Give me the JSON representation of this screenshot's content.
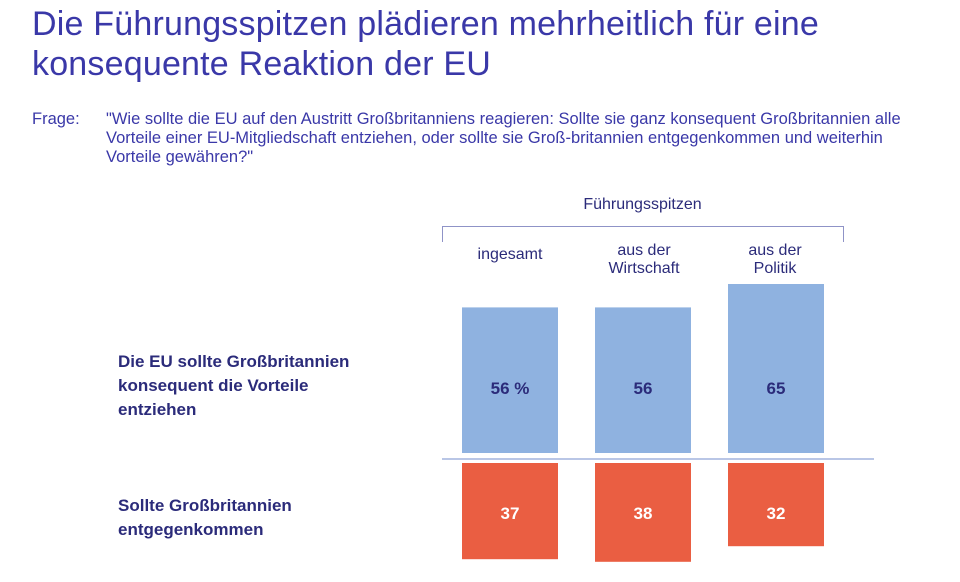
{
  "title": "Die Führungsspitzen plädieren mehrheitlich für eine konsequente Reaktion der EU",
  "question": {
    "label": "Frage:",
    "text": "\"Wie sollte die EU auf den Austritt Großbritanniens reagieren: Sollte sie ganz konsequent Großbritannien alle Vorteile einer EU-Mitgliedschaft entziehen, oder sollte sie Groß-britannien entgegenkommen und weiterhin Vorteile gewähren?\""
  },
  "colors": {
    "positive": "#8fb2e0",
    "negative": "#ea5e42",
    "text_dark": "#2b2b7a",
    "label_on_red": "#ffffff"
  },
  "chart_data": {
    "type": "bar",
    "group_header": "Führungsspitzen",
    "categories": [
      "ingesamt",
      "aus der Wirtschaft",
      "aus der Politik"
    ],
    "category_lines": [
      [
        "ingesamt"
      ],
      [
        "aus der",
        "Wirtschaft"
      ],
      [
        "aus der",
        "Politik"
      ]
    ],
    "unit": "%",
    "series": [
      {
        "name": "Die EU sollte Großbritannien konsequent die Vorteile entziehen",
        "name_lines": [
          "Die EU sollte Großbritannien",
          "konsequent die Vorteile",
          "entziehen"
        ],
        "values": [
          56,
          56,
          65
        ],
        "value_labels": [
          "56 %",
          "56",
          "65"
        ]
      },
      {
        "name": "Sollte Großbritannien entgegenkommen",
        "name_lines": [
          "Sollte Großbritannien",
          "entgegenkommen"
        ],
        "values": [
          37,
          38,
          32
        ],
        "value_labels": [
          "37",
          "38",
          "32"
        ]
      }
    ]
  }
}
